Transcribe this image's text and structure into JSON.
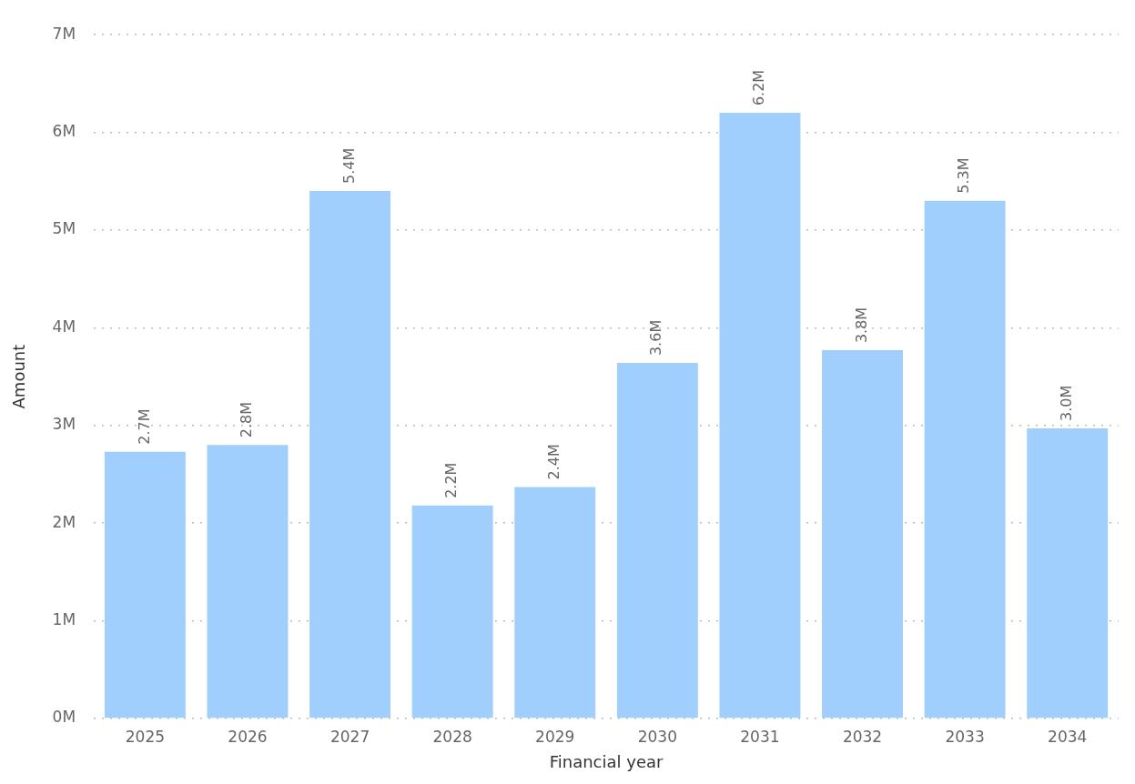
{
  "chart_data": {
    "type": "bar",
    "xlabel": "Financial year",
    "ylabel": "Amount",
    "categories": [
      "2025",
      "2026",
      "2027",
      "2028",
      "2029",
      "2030",
      "2031",
      "2032",
      "2033",
      "2034"
    ],
    "values": [
      2.73,
      2.8,
      5.4,
      2.18,
      2.37,
      3.64,
      6.2,
      3.77,
      5.3,
      2.97
    ],
    "value_labels": [
      "2.7M",
      "2.8M",
      "5.4M",
      "2.2M",
      "2.4M",
      "3.6M",
      "6.2M",
      "3.8M",
      "5.3M",
      "3.0M"
    ],
    "color": "#a1cffd",
    "ylim": [
      0,
      7
    ],
    "yticks": [
      {
        "value": 0,
        "label": "0M"
      },
      {
        "value": 1,
        "label": "1M"
      },
      {
        "value": 2,
        "label": "2M"
      },
      {
        "value": 3,
        "label": "3M"
      },
      {
        "value": 4,
        "label": "4M"
      },
      {
        "value": 5,
        "label": "5M"
      },
      {
        "value": 6,
        "label": "6M"
      },
      {
        "value": 7,
        "label": "7M"
      }
    ],
    "grid": "y",
    "legend": false
  }
}
